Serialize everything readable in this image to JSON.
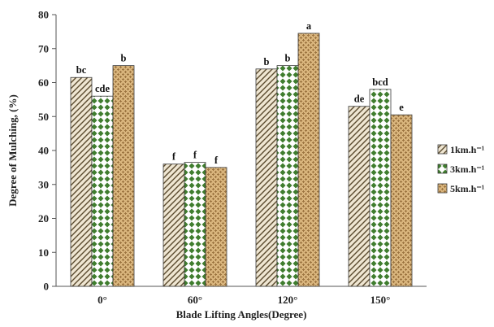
{
  "chart_data": {
    "type": "bar",
    "title": "",
    "xlabel": "Blade Lifting Angles(Degree)",
    "ylabel": "Degree of Mulching, (%)",
    "ylim": [
      0,
      80
    ],
    "yticks": [
      0,
      10,
      20,
      30,
      40,
      50,
      60,
      70,
      80
    ],
    "grid": false,
    "legend_position": "right",
    "categories": [
      "0°",
      "60°",
      "120°",
      "150°"
    ],
    "series": [
      {
        "name": "1km.h⁻¹",
        "values": [
          61.5,
          36,
          64,
          53
        ],
        "labels": [
          "bc",
          "f",
          "b",
          "de"
        ],
        "color": "#e8dcc4",
        "pattern": "diagonal-hatch"
      },
      {
        "name": "3km.h⁻¹",
        "values": [
          56,
          36.5,
          65,
          58
        ],
        "labels": [
          "cde",
          "f",
          "b",
          "bcd"
        ],
        "color": "#4e8a3a",
        "pattern": "green-diamonds"
      },
      {
        "name": "5km.h⁻¹",
        "values": [
          65,
          35,
          74.5,
          50.5
        ],
        "labels": [
          "b",
          "f",
          "a",
          "e"
        ],
        "color": "#c9a46c",
        "pattern": "brick-weave"
      }
    ]
  }
}
